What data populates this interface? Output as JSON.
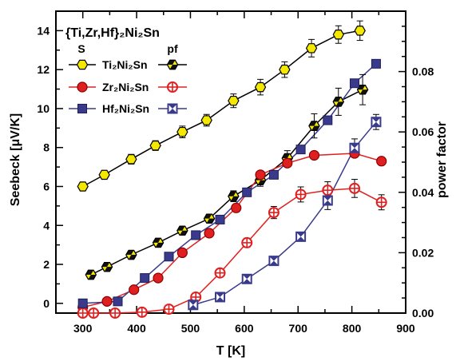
{
  "chart_data": {
    "type": "scatter",
    "title": "{Ti,Zr,Hf}₂Ni₂Sn",
    "xlabel": "T [K]",
    "ylabel_left": "Seebeck [μV/K]",
    "ylabel_right": "power factor",
    "xlim": [
      250,
      900
    ],
    "ylim_left": [
      -0.5,
      15
    ],
    "ylim_right": [
      0,
      0.1
    ],
    "x_ticks": [
      300,
      400,
      500,
      600,
      700,
      800,
      900
    ],
    "y_left_ticks": [
      0,
      2,
      4,
      6,
      8,
      10,
      12,
      14
    ],
    "y_right_ticks": [
      "0.00",
      "0.02",
      "0.04",
      "0.06",
      "0.08"
    ],
    "y_right_tick_values": [
      0,
      0.02,
      0.04,
      0.06,
      0.08
    ],
    "legend": {
      "col_s": "S",
      "col_pf": "pf",
      "entries": [
        {
          "name": "Ti₂Ni₂Sn",
          "color": "#000000",
          "fill": "#f5e800",
          "marker": "hexagon"
        },
        {
          "name": "Zr₂Ni₂Sn",
          "color": "#e02020",
          "fill": "#e02020",
          "marker": "circle"
        },
        {
          "name": "Hf₂Ni₂Sn",
          "color": "#3a3a8c",
          "fill": "#3a3a8c",
          "marker": "square"
        }
      ]
    },
    "series": [
      {
        "name": "Ti₂Ni₂Sn S",
        "axis": "left",
        "kind": "S",
        "mat": 0,
        "x": [
          300,
          340,
          390,
          435,
          485,
          530,
          580,
          630,
          675,
          725,
          775,
          815
        ],
        "y": [
          6.0,
          6.6,
          7.4,
          8.1,
          8.8,
          9.4,
          10.4,
          11.1,
          12.0,
          13.1,
          13.8,
          14.0
        ],
        "err": [
          0.2,
          0.2,
          0.25,
          0.25,
          0.3,
          0.3,
          0.35,
          0.4,
          0.4,
          0.45,
          0.45,
          0.5
        ]
      },
      {
        "name": "Ti₂Ni₂Sn pf",
        "axis": "right",
        "kind": "pf",
        "mat": 0,
        "x": [
          315,
          345,
          390,
          440,
          485,
          535,
          580,
          630,
          680,
          730,
          775,
          820
        ],
        "y": [
          0.0127,
          0.0153,
          0.0193,
          0.0233,
          0.0273,
          0.0313,
          0.0387,
          0.044,
          0.0513,
          0.062,
          0.07,
          0.074
        ],
        "err": [
          0.0008,
          0.0008,
          0.001,
          0.001,
          0.0012,
          0.0014,
          0.0018,
          0.002,
          0.0025,
          0.004,
          0.0045,
          0.005
        ]
      },
      {
        "name": "Zr₂Ni₂Sn S",
        "axis": "left",
        "kind": "S",
        "mat": 1,
        "x": [
          300,
          345,
          395,
          440,
          485,
          535,
          585,
          630,
          680,
          730,
          805,
          855
        ],
        "y": [
          -0.2,
          0.1,
          0.7,
          1.3,
          2.6,
          3.6,
          4.9,
          6.6,
          7.2,
          7.6,
          7.7,
          7.3
        ],
        "err": [
          0.0,
          0.0,
          0.0,
          0.0,
          0.0,
          0.0,
          0.0,
          0.0,
          0.0,
          0.0,
          0.0,
          0.0
        ]
      },
      {
        "name": "Zr₂Ni₂Sn pf",
        "axis": "right",
        "kind": "pf",
        "mat": 1,
        "x": [
          300,
          320,
          360,
          410,
          460,
          510,
          555,
          605,
          655,
          705,
          755,
          805,
          855
        ],
        "y": [
          0.0,
          0.0,
          0.0,
          0.0003,
          0.0013,
          0.0053,
          0.0133,
          0.0233,
          0.0333,
          0.0393,
          0.0407,
          0.0413,
          0.0367
        ],
        "err": [
          0.0,
          0.0,
          0.0,
          0.0,
          0.0005,
          0.0008,
          0.0012,
          0.0015,
          0.002,
          0.0025,
          0.0028,
          0.003,
          0.0025
        ]
      },
      {
        "name": "Hf₂Ni₂Sn S",
        "axis": "left",
        "kind": "S",
        "mat": 2,
        "x": [
          300,
          365,
          415,
          460,
          510,
          555,
          605,
          655,
          705,
          755,
          805,
          845
        ],
        "y": [
          0.0,
          0.1,
          1.3,
          2.4,
          3.5,
          4.3,
          5.7,
          6.6,
          7.9,
          9.4,
          11.3,
          12.3
        ],
        "err": [
          0.0,
          0.0,
          0.0,
          0.0,
          0.0,
          0.0,
          0.0,
          0.0,
          0.0,
          0.0,
          0.0,
          0.0
        ]
      },
      {
        "name": "Hf₂Ni₂Sn pf",
        "axis": "right",
        "kind": "pf",
        "mat": 2,
        "x": [
          505,
          555,
          605,
          655,
          705,
          755,
          805,
          845
        ],
        "y": [
          0.0027,
          0.0053,
          0.0113,
          0.0173,
          0.0253,
          0.0373,
          0.0547,
          0.0633
        ],
        "err": [
          0.0005,
          0.0006,
          0.0008,
          0.0012,
          0.0015,
          0.003,
          0.003,
          0.0025
        ]
      }
    ]
  }
}
